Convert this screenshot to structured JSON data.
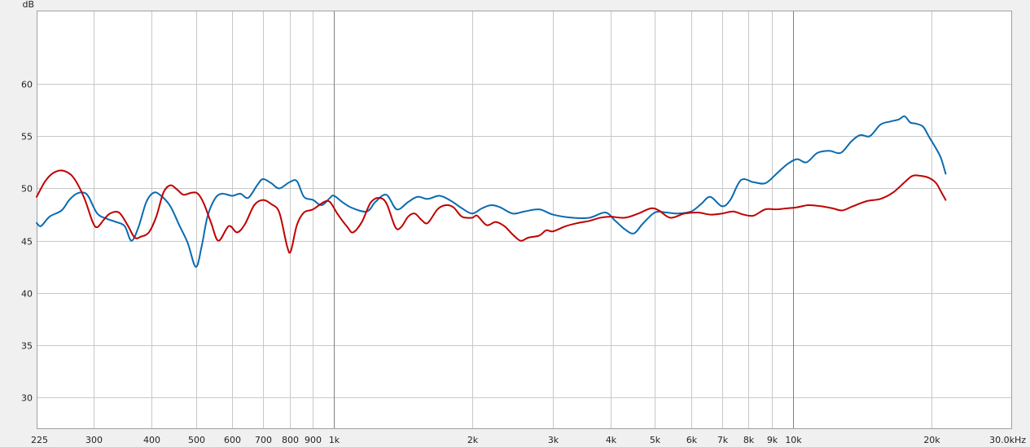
{
  "chart_data": {
    "type": "line",
    "ylabel": "dB",
    "x_scale": "log",
    "xlim": [
      225,
      30000
    ],
    "ylim": [
      27,
      67
    ],
    "grid": true,
    "colors": {
      "background": "#ffffff",
      "grid": "#c8c8c8",
      "grid_major": "#808080",
      "frame": "#a0a0a0"
    },
    "x_ticks": [
      {
        "value": 225,
        "label": "225"
      },
      {
        "value": 300,
        "label": "300"
      },
      {
        "value": 400,
        "label": "400"
      },
      {
        "value": 500,
        "label": "500"
      },
      {
        "value": 600,
        "label": "600"
      },
      {
        "value": 700,
        "label": "700"
      },
      {
        "value": 800,
        "label": "800"
      },
      {
        "value": 900,
        "label": "900"
      },
      {
        "value": 1000,
        "label": "1k"
      },
      {
        "value": 2000,
        "label": "2k"
      },
      {
        "value": 3000,
        "label": "3k"
      },
      {
        "value": 4000,
        "label": "4k"
      },
      {
        "value": 5000,
        "label": "5k"
      },
      {
        "value": 6000,
        "label": "6k"
      },
      {
        "value": 7000,
        "label": "7k"
      },
      {
        "value": 8000,
        "label": "8k"
      },
      {
        "value": 9000,
        "label": "9k"
      },
      {
        "value": 10000,
        "label": "10k"
      },
      {
        "value": 20000,
        "label": "20k"
      },
      {
        "value": 30000,
        "label": "30.0kHz"
      }
    ],
    "major_x": [
      1000,
      10000
    ],
    "y_ticks": [
      {
        "value": 30,
        "label": "30"
      },
      {
        "value": 35,
        "label": "35"
      },
      {
        "value": 40,
        "label": "40"
      },
      {
        "value": 45,
        "label": "45"
      },
      {
        "value": 50,
        "label": "50"
      },
      {
        "value": 55,
        "label": "55"
      },
      {
        "value": 60,
        "label": "60"
      }
    ],
    "series": [
      {
        "color": "#0a6bb0",
        "points": [
          [
            225,
            46.7
          ],
          [
            230,
            46.4
          ],
          [
            240,
            47.3
          ],
          [
            255,
            47.9
          ],
          [
            265,
            48.9
          ],
          [
            275,
            49.5
          ],
          [
            285,
            49.6
          ],
          [
            292,
            49.2
          ],
          [
            305,
            47.6
          ],
          [
            320,
            47.1
          ],
          [
            335,
            46.8
          ],
          [
            350,
            46.4
          ],
          [
            362,
            45.0
          ],
          [
            375,
            46.3
          ],
          [
            390,
            48.7
          ],
          [
            405,
            49.6
          ],
          [
            420,
            49.3
          ],
          [
            440,
            48.3
          ],
          [
            460,
            46.5
          ],
          [
            480,
            44.8
          ],
          [
            500,
            42.5
          ],
          [
            515,
            44.5
          ],
          [
            530,
            47.3
          ],
          [
            550,
            49.0
          ],
          [
            570,
            49.5
          ],
          [
            600,
            49.3
          ],
          [
            625,
            49.5
          ],
          [
            650,
            49.1
          ],
          [
            680,
            50.3
          ],
          [
            700,
            50.9
          ],
          [
            730,
            50.5
          ],
          [
            760,
            50.0
          ],
          [
            800,
            50.6
          ],
          [
            830,
            50.7
          ],
          [
            860,
            49.2
          ],
          [
            900,
            48.9
          ],
          [
            940,
            48.4
          ],
          [
            980,
            49.1
          ],
          [
            1000,
            49.3
          ],
          [
            1050,
            48.6
          ],
          [
            1100,
            48.1
          ],
          [
            1180,
            47.8
          ],
          [
            1230,
            48.7
          ],
          [
            1300,
            49.4
          ],
          [
            1370,
            48.0
          ],
          [
            1450,
            48.7
          ],
          [
            1520,
            49.2
          ],
          [
            1600,
            49.0
          ],
          [
            1700,
            49.3
          ],
          [
            1800,
            48.8
          ],
          [
            1900,
            48.1
          ],
          [
            2000,
            47.6
          ],
          [
            2100,
            48.1
          ],
          [
            2200,
            48.4
          ],
          [
            2300,
            48.2
          ],
          [
            2450,
            47.6
          ],
          [
            2600,
            47.8
          ],
          [
            2800,
            48.0
          ],
          [
            3000,
            47.5
          ],
          [
            3300,
            47.2
          ],
          [
            3600,
            47.2
          ],
          [
            3900,
            47.7
          ],
          [
            4100,
            46.9
          ],
          [
            4300,
            46.1
          ],
          [
            4500,
            45.7
          ],
          [
            4700,
            46.6
          ],
          [
            5000,
            47.7
          ],
          [
            5300,
            47.7
          ],
          [
            5600,
            47.6
          ],
          [
            6000,
            47.8
          ],
          [
            6300,
            48.5
          ],
          [
            6600,
            49.2
          ],
          [
            7000,
            48.3
          ],
          [
            7300,
            48.9
          ],
          [
            7700,
            50.8
          ],
          [
            8200,
            50.6
          ],
          [
            8700,
            50.5
          ],
          [
            9200,
            51.4
          ],
          [
            9700,
            52.3
          ],
          [
            10200,
            52.8
          ],
          [
            10700,
            52.5
          ],
          [
            11300,
            53.4
          ],
          [
            12000,
            53.6
          ],
          [
            12700,
            53.4
          ],
          [
            13400,
            54.5
          ],
          [
            14000,
            55.1
          ],
          [
            14700,
            55.0
          ],
          [
            15500,
            56.1
          ],
          [
            16300,
            56.4
          ],
          [
            17000,
            56.6
          ],
          [
            17500,
            56.9
          ],
          [
            18000,
            56.3
          ],
          [
            18500,
            56.2
          ],
          [
            19200,
            55.9
          ],
          [
            19800,
            54.9
          ],
          [
            20500,
            53.8
          ],
          [
            21000,
            52.9
          ],
          [
            21500,
            51.4
          ]
        ]
      },
      {
        "color": "#c00000",
        "points": [
          [
            225,
            49.2
          ],
          [
            235,
            50.7
          ],
          [
            245,
            51.5
          ],
          [
            257,
            51.7
          ],
          [
            270,
            51.1
          ],
          [
            285,
            49.2
          ],
          [
            298,
            46.8
          ],
          [
            305,
            46.3
          ],
          [
            315,
            47.0
          ],
          [
            325,
            47.6
          ],
          [
            340,
            47.7
          ],
          [
            355,
            46.5
          ],
          [
            368,
            45.3
          ],
          [
            380,
            45.4
          ],
          [
            395,
            45.8
          ],
          [
            410,
            47.3
          ],
          [
            425,
            49.6
          ],
          [
            440,
            50.3
          ],
          [
            455,
            49.9
          ],
          [
            470,
            49.4
          ],
          [
            490,
            49.6
          ],
          [
            505,
            49.5
          ],
          [
            520,
            48.6
          ],
          [
            540,
            46.7
          ],
          [
            560,
            45.0
          ],
          [
            590,
            46.4
          ],
          [
            615,
            45.8
          ],
          [
            640,
            46.6
          ],
          [
            670,
            48.4
          ],
          [
            700,
            48.9
          ],
          [
            730,
            48.5
          ],
          [
            760,
            47.7
          ],
          [
            790,
            44.5
          ],
          [
            805,
            44.0
          ],
          [
            830,
            46.5
          ],
          [
            860,
            47.7
          ],
          [
            900,
            48.0
          ],
          [
            950,
            48.7
          ],
          [
            980,
            48.7
          ],
          [
            1020,
            47.5
          ],
          [
            1070,
            46.3
          ],
          [
            1100,
            45.8
          ],
          [
            1150,
            46.8
          ],
          [
            1200,
            48.6
          ],
          [
            1250,
            49.1
          ],
          [
            1300,
            48.6
          ],
          [
            1360,
            46.3
          ],
          [
            1400,
            46.3
          ],
          [
            1450,
            47.3
          ],
          [
            1500,
            47.6
          ],
          [
            1550,
            47.0
          ],
          [
            1600,
            46.7
          ],
          [
            1680,
            48.0
          ],
          [
            1750,
            48.4
          ],
          [
            1820,
            48.2
          ],
          [
            1900,
            47.3
          ],
          [
            2000,
            47.2
          ],
          [
            2050,
            47.4
          ],
          [
            2150,
            46.5
          ],
          [
            2250,
            46.8
          ],
          [
            2350,
            46.4
          ],
          [
            2450,
            45.6
          ],
          [
            2550,
            45.0
          ],
          [
            2650,
            45.3
          ],
          [
            2800,
            45.5
          ],
          [
            2900,
            46.0
          ],
          [
            3000,
            45.9
          ],
          [
            3200,
            46.4
          ],
          [
            3400,
            46.7
          ],
          [
            3600,
            46.9
          ],
          [
            3800,
            47.2
          ],
          [
            4000,
            47.3
          ],
          [
            4300,
            47.2
          ],
          [
            4600,
            47.6
          ],
          [
            4900,
            48.1
          ],
          [
            5100,
            47.9
          ],
          [
            5400,
            47.2
          ],
          [
            5800,
            47.6
          ],
          [
            6200,
            47.7
          ],
          [
            6600,
            47.5
          ],
          [
            7000,
            47.6
          ],
          [
            7400,
            47.8
          ],
          [
            7800,
            47.5
          ],
          [
            8200,
            47.4
          ],
          [
            8700,
            48.0
          ],
          [
            9200,
            48.0
          ],
          [
            9700,
            48.1
          ],
          [
            10200,
            48.2
          ],
          [
            10800,
            48.4
          ],
          [
            11500,
            48.3
          ],
          [
            12200,
            48.1
          ],
          [
            12800,
            47.9
          ],
          [
            13500,
            48.3
          ],
          [
            14500,
            48.8
          ],
          [
            15500,
            49.0
          ],
          [
            16500,
            49.6
          ],
          [
            17500,
            50.6
          ],
          [
            18200,
            51.2
          ],
          [
            19000,
            51.2
          ],
          [
            19800,
            51.0
          ],
          [
            20500,
            50.5
          ],
          [
            21000,
            49.7
          ],
          [
            21500,
            48.9
          ]
        ]
      }
    ]
  }
}
